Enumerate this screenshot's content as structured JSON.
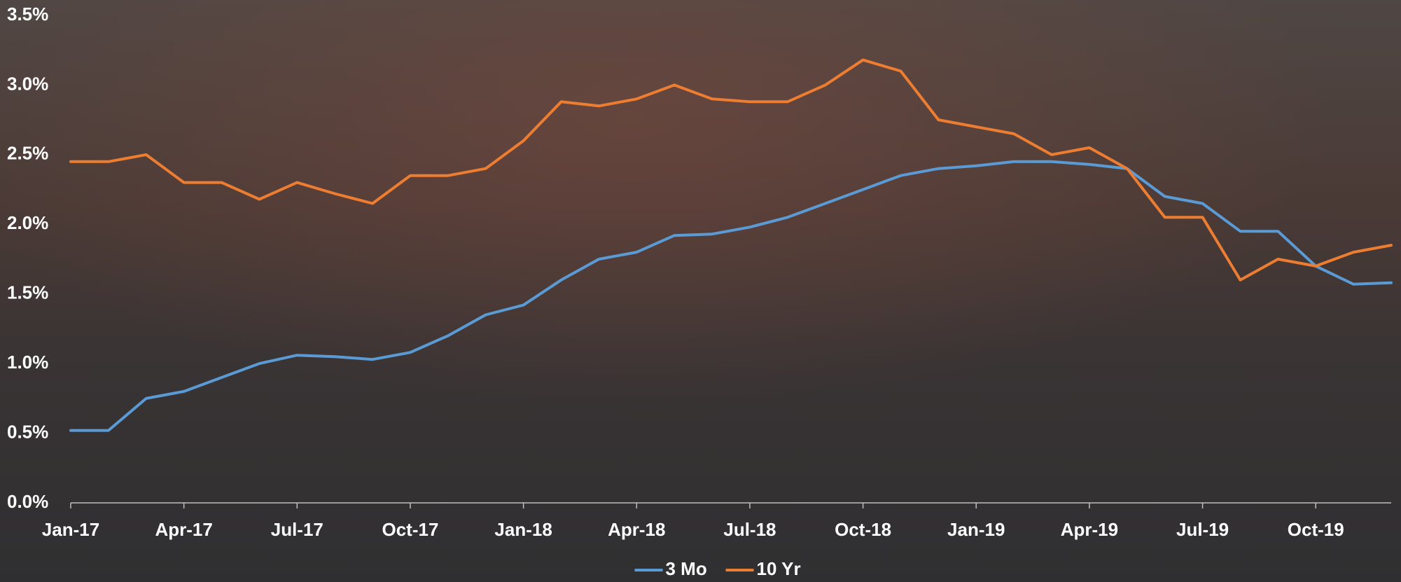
{
  "chart_data": {
    "type": "line",
    "categories": [
      "Jan-17",
      null,
      null,
      "Apr-17",
      null,
      null,
      "Jul-17",
      null,
      null,
      "Oct-17",
      null,
      null,
      "Jan-18",
      null,
      null,
      "Apr-18",
      null,
      null,
      "Jul-18",
      null,
      null,
      "Oct-18",
      null,
      null,
      "Jan-19",
      null,
      null,
      "Apr-19",
      null,
      null,
      "Jul-19",
      null,
      null,
      "Oct-19",
      null,
      null
    ],
    "series": [
      {
        "name": "3 Mo",
        "color": "#5b9bd5",
        "values": [
          0.52,
          0.52,
          0.75,
          0.8,
          0.9,
          1.0,
          1.06,
          1.05,
          1.03,
          1.08,
          1.2,
          1.35,
          1.42,
          1.6,
          1.75,
          1.8,
          1.92,
          1.93,
          1.98,
          2.05,
          2.15,
          2.25,
          2.35,
          2.4,
          2.42,
          2.45,
          2.45,
          2.43,
          2.4,
          2.2,
          2.15,
          1.95,
          1.95,
          1.7,
          1.57,
          1.58
        ]
      },
      {
        "name": "10 Yr",
        "color": "#ed7d31",
        "values": [
          2.45,
          2.45,
          2.5,
          2.3,
          2.3,
          2.18,
          2.3,
          2.22,
          2.15,
          2.35,
          2.35,
          2.4,
          2.6,
          2.88,
          2.85,
          2.9,
          3.0,
          2.9,
          2.88,
          2.88,
          3.0,
          3.18,
          3.1,
          2.75,
          2.7,
          2.65,
          2.5,
          2.55,
          2.4,
          2.05,
          2.05,
          1.6,
          1.75,
          1.7,
          1.8,
          1.85
        ]
      }
    ],
    "ylim": [
      0,
      3.5
    ],
    "yticks": [
      {
        "value": 0,
        "label": "0.0%"
      },
      {
        "value": 0.5,
        "label": "0.5%"
      },
      {
        "value": 1,
        "label": "1.0%"
      },
      {
        "value": 1.5,
        "label": "1.5%"
      },
      {
        "value": 2,
        "label": "2.0%"
      },
      {
        "value": 2.5,
        "label": "2.5%"
      },
      {
        "value": 3,
        "label": "3.0%"
      },
      {
        "value": 3.5,
        "label": "3.5%"
      }
    ],
    "grid": false,
    "legend": "bottom"
  }
}
